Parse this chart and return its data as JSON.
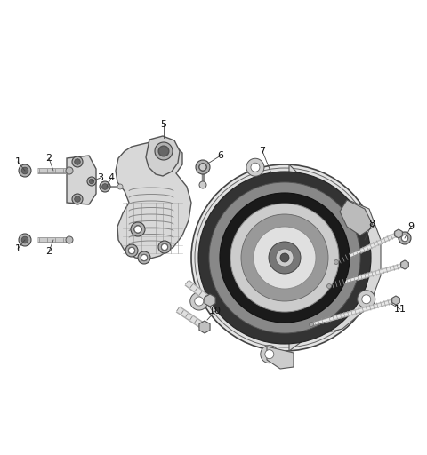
{
  "bg_color": "#ffffff",
  "line_color": "#404040",
  "label_color": "#222222",
  "figsize": [
    4.8,
    5.12
  ],
  "dpi": 100,
  "bracket_color": "#e8e8e8",
  "bracket_edge": "#555555",
  "bolt_face": "#d0d0d0",
  "bolt_edge": "#666666",
  "comp_outer": "#e0e0e0",
  "comp_dark": "#222222",
  "comp_mid": "#aaaaaa",
  "comp_light": "#cccccc"
}
